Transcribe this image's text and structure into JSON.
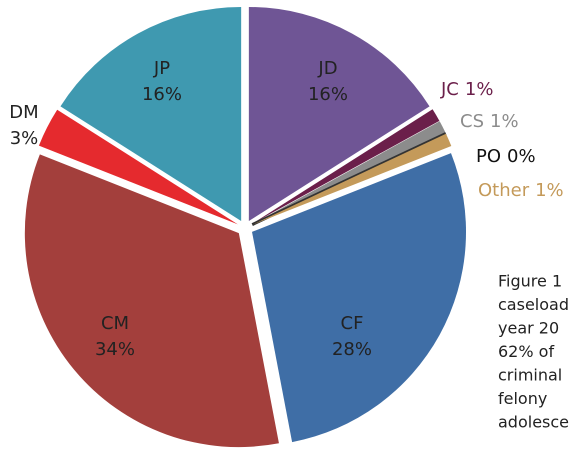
{
  "chart_data": {
    "type": "pie",
    "categories": [
      "JD",
      "JC",
      "CS",
      "PO",
      "Other",
      "CF",
      "CM",
      "DM",
      "JP"
    ],
    "values": [
      16,
      1,
      1,
      0,
      1,
      28,
      34,
      3,
      16
    ],
    "value_labels": [
      "16%",
      "1%",
      "1%",
      "0%",
      "1%",
      "28%",
      "34%",
      "3%",
      "16%"
    ],
    "colors": [
      "#6f5595",
      "#6b1f4a",
      "#8c8c8c",
      "#333333",
      "#c49a5a",
      "#3f6ea6",
      "#a33f3c",
      "#e52a2e",
      "#3f99b0"
    ],
    "caption_lines": [
      "Figure 1",
      "caseload",
      "year 20",
      "62% of",
      "criminal",
      "felony",
      "adolesce"
    ]
  }
}
